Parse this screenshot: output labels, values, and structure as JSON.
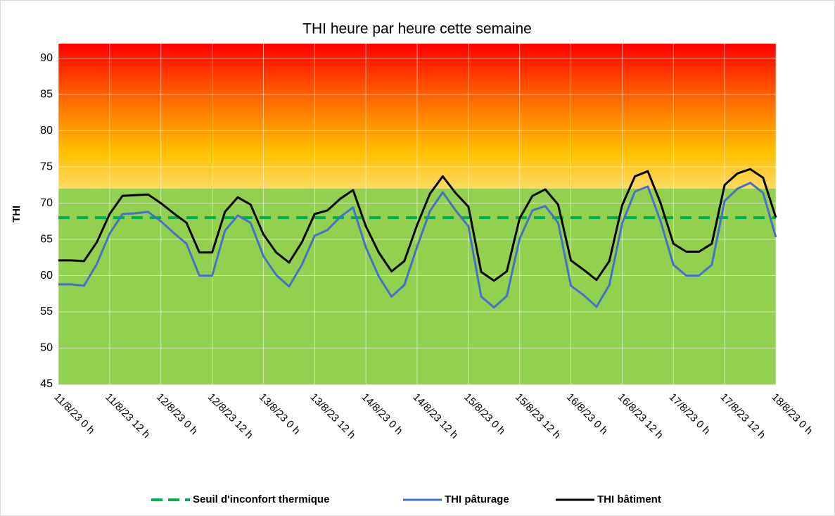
{
  "chart_data": {
    "type": "line",
    "title": "THI heure par heure cette semaine",
    "y_label": "THI",
    "categories": [
      "11/8/23 0 h",
      null,
      null,
      null,
      "11/8/23 12 h",
      null,
      null,
      null,
      "12/8/23 0 h",
      null,
      null,
      null,
      "12/8/23 12 h",
      null,
      null,
      null,
      "13/8/23 0 h",
      null,
      null,
      null,
      "13/8/23 12 h",
      null,
      null,
      null,
      "14/8/23 0 h",
      null,
      null,
      null,
      "14/8/23 12 h",
      null,
      null,
      null,
      "15/8/23 0 h",
      null,
      null,
      null,
      "15/8/23 12 h",
      null,
      null,
      null,
      "16/8/23 0 h",
      null,
      null,
      null,
      "16/8/23 12 h",
      null,
      null,
      null,
      "17/8/23 0 h",
      null,
      null,
      null,
      "17/8/23 12 h",
      null,
      null,
      null,
      "18/8/23 0 h"
    ],
    "series": [
      {
        "name": "Seuil d'inconfort thermique",
        "color": "#00b050",
        "dashed": true,
        "values": [
          68,
          68,
          68,
          68,
          68,
          68,
          68,
          68,
          68,
          68,
          68,
          68,
          68,
          68,
          68,
          68,
          68,
          68,
          68,
          68,
          68,
          68,
          68,
          68,
          68,
          68,
          68,
          68,
          68,
          68,
          68,
          68,
          68,
          68,
          68,
          68,
          68,
          68,
          68,
          68,
          68,
          68,
          68,
          68,
          68,
          68,
          68,
          68,
          68,
          68,
          68,
          68,
          68,
          68,
          68,
          68,
          68
        ]
      },
      {
        "name": "THI pâturage",
        "color": "#4472c4",
        "dashed": false,
        "values": [
          58.8,
          58.8,
          58.6,
          61.6,
          65.8,
          68.5,
          68.6,
          68.8,
          67.5,
          65.9,
          64.4,
          60.0,
          60.0,
          66.2,
          68.3,
          67.3,
          62.7,
          60.1,
          58.5,
          61.5,
          65.5,
          66.3,
          68.1,
          69.4,
          63.9,
          59.9,
          57.1,
          58.7,
          64.0,
          68.9,
          71.5,
          69.0,
          66.8,
          57.1,
          55.6,
          57.2,
          65.1,
          69.0,
          69.6,
          67.3,
          58.6,
          57.3,
          55.7,
          58.7,
          67.2,
          71.6,
          72.3,
          67.5,
          61.5,
          60.0,
          60.0,
          61.5,
          70.3,
          72.0,
          72.8,
          71.4,
          65.3
        ]
      },
      {
        "name": "THI bâtiment",
        "color": "#000000",
        "dashed": false,
        "values": [
          62.1,
          62.1,
          62.0,
          64.6,
          68.5,
          71.0,
          71.1,
          71.2,
          70.0,
          68.6,
          67.3,
          63.2,
          63.2,
          68.8,
          70.8,
          69.8,
          65.7,
          63.2,
          61.8,
          64.6,
          68.5,
          69.0,
          70.6,
          71.8,
          66.8,
          63.2,
          60.6,
          62.0,
          67.0,
          71.3,
          73.7,
          71.4,
          69.5,
          60.5,
          59.3,
          60.6,
          67.9,
          71.0,
          71.9,
          69.8,
          62.1,
          60.8,
          59.4,
          62.0,
          69.7,
          73.7,
          74.4,
          70.0,
          64.4,
          63.3,
          63.3,
          64.4,
          72.5,
          74.1,
          74.7,
          73.5,
          68.0
        ]
      }
    ],
    "ylim": [
      45,
      92
    ],
    "yticks": [
      45,
      50,
      55,
      60,
      65,
      70,
      75,
      80,
      85,
      90
    ],
    "grid": true,
    "legend": "bottom"
  }
}
